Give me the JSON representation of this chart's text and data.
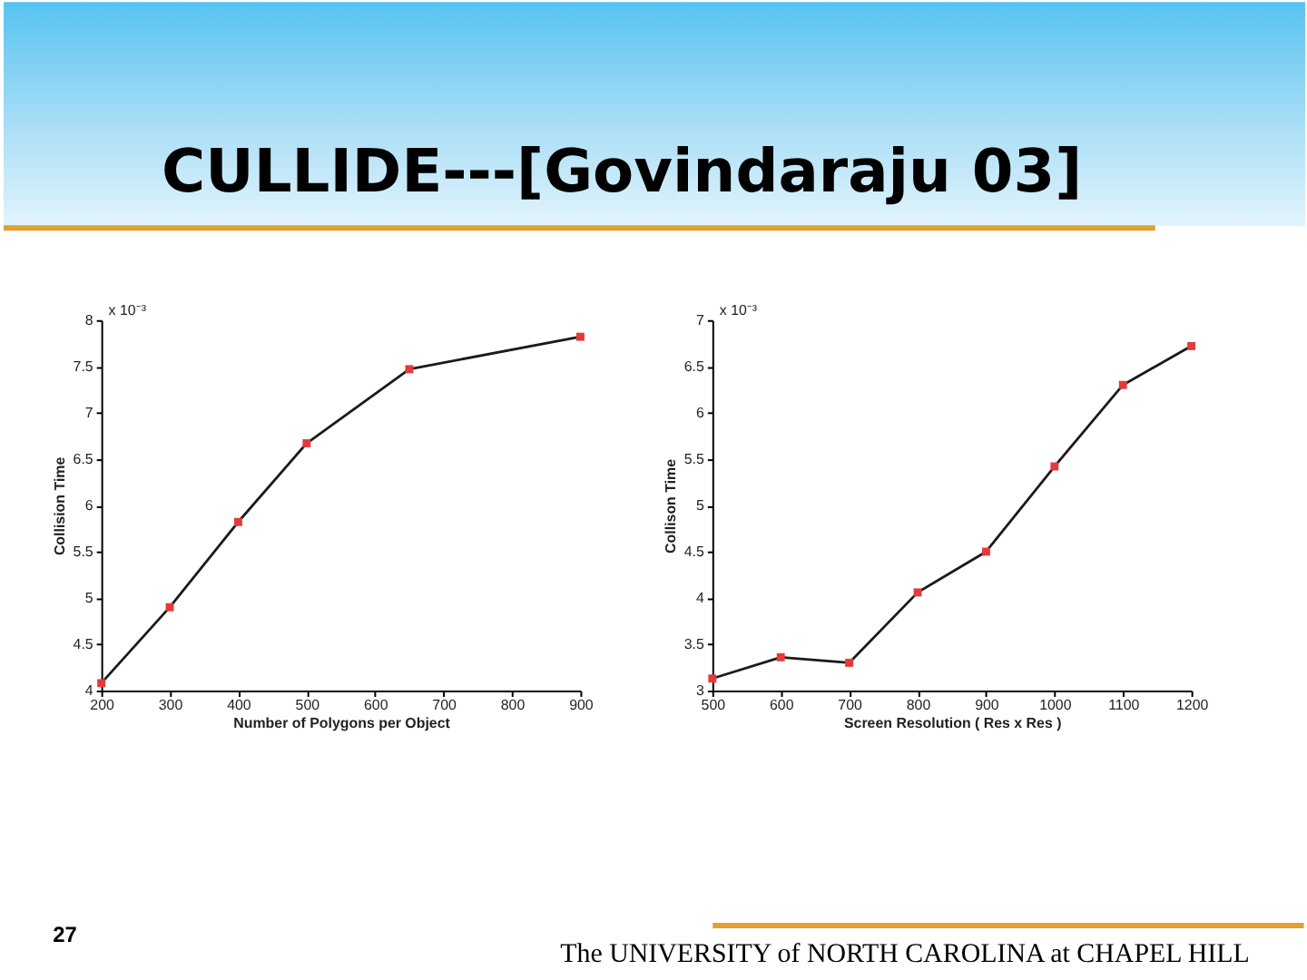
{
  "chart_data": [
    {
      "type": "line",
      "title": "CULLIDE---[Govindaraju 03]",
      "xlabel": "Number of Polygons per Object",
      "ylabel": "Collision Time",
      "x": [
        200,
        300,
        400,
        500,
        650,
        900
      ],
      "series": [
        {
          "color": "#1a1a1a",
          "values": [
            4.08,
            4.9,
            5.82,
            6.67,
            7.47,
            7.82
          ]
        },
        {
          "type": "scatter",
          "marker": "square",
          "color": "#e23b3b",
          "values": [
            4.08,
            4.9,
            5.82,
            6.67,
            7.47,
            7.82
          ]
        }
      ],
      "xlim": [
        200,
        900
      ],
      "ylim": [
        4,
        8
      ],
      "xticks": [
        200,
        300,
        400,
        500,
        600,
        700,
        800,
        900
      ],
      "yticks": [
        4,
        4.5,
        5,
        5.5,
        6,
        6.5,
        7,
        7.5,
        8
      ],
      "annotations": [
        "x 10⁻³"
      ]
    },
    {
      "type": "line",
      "xlabel": "Screen Resolution  ( Res x Res )",
      "ylabel": "Collison Time",
      "x": [
        500,
        600,
        700,
        800,
        900,
        1000,
        1100,
        1200
      ],
      "series": [
        {
          "color": "#1a1a1a",
          "values": [
            3.13,
            3.36,
            3.3,
            4.06,
            4.5,
            5.42,
            6.3,
            6.72
          ]
        },
        {
          "type": "scatter",
          "marker": "square",
          "color": "#e23b3b",
          "values": [
            3.13,
            3.36,
            3.3,
            4.06,
            4.5,
            5.42,
            6.3,
            6.72
          ]
        }
      ],
      "xlim": [
        500,
        1200
      ],
      "ylim": [
        3,
        7
      ],
      "xticks": [
        500,
        600,
        700,
        800,
        900,
        1000,
        1100,
        1200
      ],
      "yticks": [
        3,
        3.5,
        4,
        4.5,
        5,
        5.5,
        6,
        6.5,
        7
      ],
      "annotations": [
        "x 10⁻³",
        "27",
        "The UNIVERSITY of NORTH CAROLINA at CHAPEL HILL"
      ]
    }
  ]
}
